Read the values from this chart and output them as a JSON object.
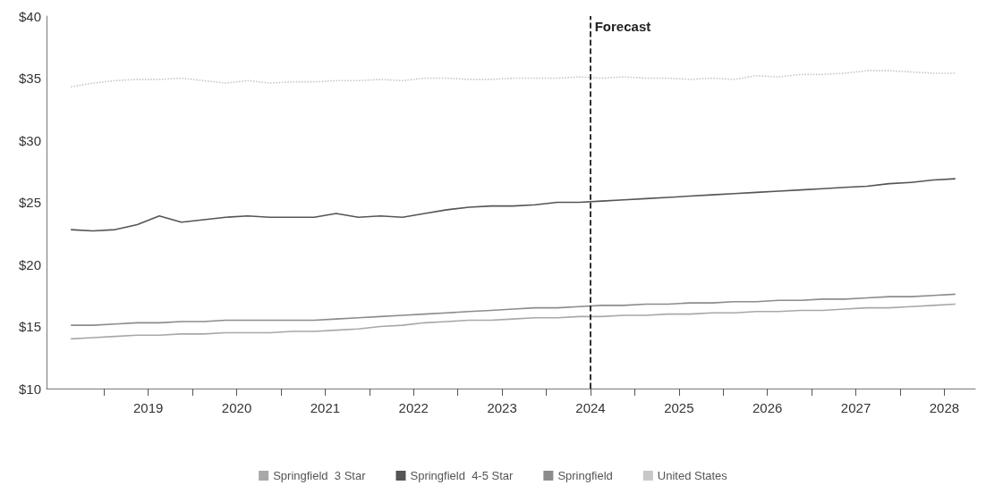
{
  "chart_data": {
    "type": "line",
    "x": [
      2018.625,
      2018.875,
      2019.125,
      2019.375,
      2019.625,
      2019.875,
      2020.125,
      2020.375,
      2020.625,
      2020.875,
      2021.125,
      2021.375,
      2021.625,
      2021.875,
      2022.125,
      2022.375,
      2022.625,
      2022.875,
      2023.125,
      2023.375,
      2023.625,
      2023.875,
      2024.125,
      2024.375,
      2024.625,
      2024.875,
      2025.125,
      2025.375,
      2025.625,
      2025.875,
      2026.125,
      2026.375,
      2026.625,
      2026.875,
      2027.125,
      2027.375,
      2027.625,
      2027.875,
      2028.125,
      2028.375,
      2028.625
    ],
    "series": [
      {
        "name": "Springfield  3 Star",
        "color": "#a8a8a8",
        "values": [
          14.0,
          14.1,
          14.2,
          14.3,
          14.3,
          14.4,
          14.4,
          14.5,
          14.5,
          14.5,
          14.6,
          14.6,
          14.7,
          14.8,
          15.0,
          15.1,
          15.3,
          15.4,
          15.5,
          15.5,
          15.6,
          15.7,
          15.7,
          15.8,
          15.8,
          15.9,
          15.9,
          16.0,
          16.0,
          16.1,
          16.1,
          16.2,
          16.2,
          16.3,
          16.3,
          16.4,
          16.5,
          16.5,
          16.6,
          16.7,
          16.8
        ]
      },
      {
        "name": "Springfield  4-5 Star",
        "color": "#555555",
        "values": [
          22.8,
          22.7,
          22.8,
          23.2,
          23.9,
          23.4,
          23.6,
          23.8,
          23.9,
          23.8,
          23.8,
          23.8,
          24.1,
          23.8,
          23.9,
          23.8,
          24.1,
          24.4,
          24.6,
          24.7,
          24.7,
          24.8,
          25.0,
          25.0,
          25.1,
          25.2,
          25.3,
          25.4,
          25.5,
          25.6,
          25.7,
          25.8,
          25.9,
          26.0,
          26.1,
          26.2,
          26.3,
          26.5,
          26.6,
          26.8,
          26.9
        ]
      },
      {
        "name": "Springfield",
        "color": "#8c8c8c",
        "values": [
          15.1,
          15.1,
          15.2,
          15.3,
          15.3,
          15.4,
          15.4,
          15.5,
          15.5,
          15.5,
          15.5,
          15.5,
          15.6,
          15.7,
          15.8,
          15.9,
          16.0,
          16.1,
          16.2,
          16.3,
          16.4,
          16.5,
          16.5,
          16.6,
          16.7,
          16.7,
          16.8,
          16.8,
          16.9,
          16.9,
          17.0,
          17.0,
          17.1,
          17.1,
          17.2,
          17.2,
          17.3,
          17.4,
          17.4,
          17.5,
          17.6
        ]
      },
      {
        "name": "United States",
        "color": "#c8c8c8",
        "line_style": "dotted",
        "values": [
          34.3,
          34.6,
          34.8,
          34.9,
          34.9,
          35.0,
          34.8,
          34.6,
          34.8,
          34.6,
          34.7,
          34.7,
          34.8,
          34.8,
          34.9,
          34.8,
          35.0,
          35.0,
          34.9,
          34.9,
          35.0,
          35.0,
          35.0,
          35.1,
          35.0,
          35.1,
          35.0,
          35.0,
          34.9,
          35.0,
          34.9,
          35.2,
          35.1,
          35.3,
          35.3,
          35.4,
          35.6,
          35.6,
          35.5,
          35.4,
          35.4
        ]
      }
    ],
    "xlim": [
      2018.35,
      2028.85
    ],
    "xticks": [
      {
        "value": 2019,
        "label": null
      },
      {
        "value": 2019.5,
        "label": "2019"
      },
      {
        "value": 2020,
        "label": null
      },
      {
        "value": 2020.5,
        "label": "2020"
      },
      {
        "value": 2021,
        "label": null
      },
      {
        "value": 2021.5,
        "label": "2021"
      },
      {
        "value": 2022,
        "label": null
      },
      {
        "value": 2022.5,
        "label": "2022"
      },
      {
        "value": 2023,
        "label": null
      },
      {
        "value": 2023.5,
        "label": "2023"
      },
      {
        "value": 2024,
        "label": null
      },
      {
        "value": 2024.5,
        "label": "2024"
      },
      {
        "value": 2025,
        "label": null
      },
      {
        "value": 2025.5,
        "label": "2025"
      },
      {
        "value": 2026,
        "label": null
      },
      {
        "value": 2026.5,
        "label": "2026"
      },
      {
        "value": 2027,
        "label": null
      },
      {
        "value": 2027.5,
        "label": "2027"
      },
      {
        "value": 2028,
        "label": null
      },
      {
        "value": 2028.5,
        "label": "2028"
      }
    ],
    "ylim": [
      10,
      40
    ],
    "yticks": [
      {
        "value": 10,
        "label": "$10"
      },
      {
        "value": 15,
        "label": "$15"
      },
      {
        "value": 20,
        "label": "$20"
      },
      {
        "value": 25,
        "label": "$25"
      },
      {
        "value": 30,
        "label": "$30"
      },
      {
        "value": 35,
        "label": "$35"
      },
      {
        "value": 40,
        "label": "$40"
      }
    ],
    "ref_lines": [
      {
        "axis": "x",
        "value": 2024.5,
        "label": "Forecast",
        "color": "#000000",
        "line_style": "dashed"
      }
    ],
    "grid": false,
    "legend": "bottom",
    "marker": "none",
    "line_style": "solid"
  }
}
